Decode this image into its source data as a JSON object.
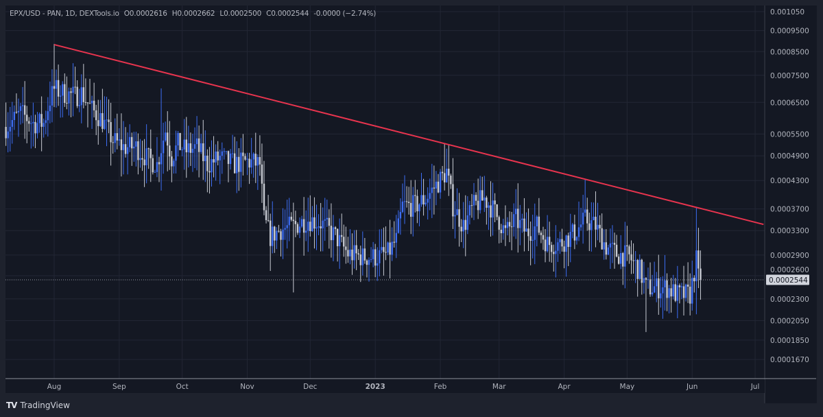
{
  "legend": {
    "symbol": "EPX/USD - PAN, 1D, DEXTools.io",
    "open": "O0.0002616",
    "high": "H0.0002662",
    "low": "L0.0002500",
    "close": "C0.0002544",
    "change": "-0.0000 (−2.74%)"
  },
  "branding": {
    "logo_mark": "17",
    "name": "TradingView"
  },
  "colors": {
    "up": "#3d6ef5",
    "down": "#c9ccd4",
    "trendline": "#e8344e",
    "background": "#141823",
    "frame": "#1e222d",
    "grid": "#222634"
  },
  "chart_data": {
    "type": "candlestick",
    "title": "EPX/USD - PAN, 1D, DEXTools.io",
    "y_scale": "log",
    "ylim": [
      0.000155,
      0.00108
    ],
    "y_ticks": [
      "0.001050",
      "0.0009500",
      "0.0008500",
      "0.0007500",
      "0.0006500",
      "0.0005500",
      "0.0004900",
      "0.0004300",
      "0.0003700",
      "0.0003300",
      "0.0002900",
      "0.0002600",
      "0.0002300",
      "0.0002050",
      "0.0001850",
      "0.0001670"
    ],
    "x_ticks": [
      {
        "label": "Aug",
        "date": "2022-08-01"
      },
      {
        "label": "Sep",
        "date": "2022-09-01"
      },
      {
        "label": "Oct",
        "date": "2022-10-01"
      },
      {
        "label": "Nov",
        "date": "2022-11-01"
      },
      {
        "label": "Dec",
        "date": "2022-12-01"
      },
      {
        "label": "2023",
        "date": "2023-01-01"
      },
      {
        "label": "Feb",
        "date": "2023-02-01"
      },
      {
        "label": "Mar",
        "date": "2023-03-01"
      },
      {
        "label": "Apr",
        "date": "2023-04-01"
      },
      {
        "label": "May",
        "date": "2023-05-01"
      },
      {
        "label": "Jun",
        "date": "2023-06-01"
      },
      {
        "label": "Jul",
        "date": "2023-07-01"
      }
    ],
    "current_price": "0.0002544",
    "approx_close_anchors": [
      [
        "2022-07-09",
        0.000571
      ],
      [
        "2022-07-16",
        0.000614
      ],
      [
        "2022-07-22",
        0.000582
      ],
      [
        "2022-07-27",
        0.000582
      ],
      [
        "2022-07-30",
        0.00066
      ],
      [
        "2022-08-01",
        0.000697
      ],
      [
        "2022-08-05",
        0.000684
      ],
      [
        "2022-08-11",
        0.000672
      ],
      [
        "2022-08-14",
        0.000684
      ],
      [
        "2022-08-19",
        0.000625
      ],
      [
        "2022-08-24",
        0.000592
      ],
      [
        "2022-08-29",
        0.000531
      ],
      [
        "2022-09-03",
        0.000513
      ],
      [
        "2022-09-09",
        0.000513
      ],
      [
        "2022-09-14",
        0.000485
      ],
      [
        "2022-09-19",
        0.000468
      ],
      [
        "2022-09-23",
        0.000561
      ],
      [
        "2022-09-26",
        0.000485
      ],
      [
        "2022-09-29",
        0.000521
      ],
      [
        "2022-10-03",
        0.000503
      ],
      [
        "2022-10-08",
        0.000513
      ],
      [
        "2022-10-13",
        0.000468
      ],
      [
        "2022-10-19",
        0.000485
      ],
      [
        "2022-10-26",
        0.000468
      ],
      [
        "2022-11-01",
        0.000476
      ],
      [
        "2022-11-07",
        0.000468
      ],
      [
        "2022-11-09",
        0.00035
      ],
      [
        "2022-11-12",
        0.00032
      ],
      [
        "2022-11-17",
        0.000332
      ],
      [
        "2022-11-23",
        0.000338
      ],
      [
        "2022-11-30",
        0.00035
      ],
      [
        "2022-12-06",
        0.000344
      ],
      [
        "2022-12-13",
        0.00032
      ],
      [
        "2022-12-19",
        0.000292
      ],
      [
        "2022-12-26",
        0.000287
      ],
      [
        "2023-01-01",
        0.000287
      ],
      [
        "2023-01-07",
        0.000292
      ],
      [
        "2023-01-11",
        0.000314
      ],
      [
        "2023-01-14",
        0.000376
      ],
      [
        "2023-01-20",
        0.000376
      ],
      [
        "2023-01-25",
        0.000391
      ],
      [
        "2023-01-30",
        0.00042
      ],
      [
        "2023-02-04",
        0.000451
      ],
      [
        "2023-02-07",
        0.000376
      ],
      [
        "2023-02-12",
        0.000338
      ],
      [
        "2023-02-17",
        0.000376
      ],
      [
        "2023-02-22",
        0.000391
      ],
      [
        "2023-02-27",
        0.000364
      ],
      [
        "2023-03-04",
        0.000326
      ],
      [
        "2023-03-09",
        0.00035
      ],
      [
        "2023-03-14",
        0.000326
      ],
      [
        "2023-03-19",
        0.000338
      ],
      [
        "2023-03-24",
        0.000308
      ],
      [
        "2023-03-30",
        0.000308
      ],
      [
        "2023-04-06",
        0.000326
      ],
      [
        "2023-04-11",
        0.00035
      ],
      [
        "2023-04-16",
        0.000338
      ],
      [
        "2023-04-21",
        0.000303
      ],
      [
        "2023-04-26",
        0.000292
      ],
      [
        "2023-05-02",
        0.000287
      ],
      [
        "2023-05-07",
        0.000267
      ],
      [
        "2023-05-10",
        0.000244
      ],
      [
        "2023-05-15",
        0.000244
      ],
      [
        "2023-05-20",
        0.000244
      ],
      [
        "2023-05-25",
        0.000235
      ],
      [
        "2023-05-31",
        0.000235
      ],
      [
        "2023-06-03",
        0.000282
      ],
      [
        "2023-06-04",
        0.000257
      ],
      [
        "2023-06-05",
        0.0002544
      ]
    ],
    "notable_wicks": [
      [
        "2022-08-01",
        0.000885,
        null
      ],
      [
        "2023-02-03",
        0.000522,
        null
      ],
      [
        "2023-04-11",
        0.000432,
        null
      ],
      [
        "2023-06-03",
        0.000372,
        0.000212
      ],
      [
        "2023-05-10",
        null,
        0.000193
      ],
      [
        "2022-11-23",
        null,
        0.000238
      ],
      [
        "2022-09-21",
        0.0007,
        null
      ]
    ],
    "trendline": {
      "start": [
        "2022-08-01",
        0.000882
      ],
      "end": [
        "2023-07-05",
        0.000341
      ]
    }
  }
}
